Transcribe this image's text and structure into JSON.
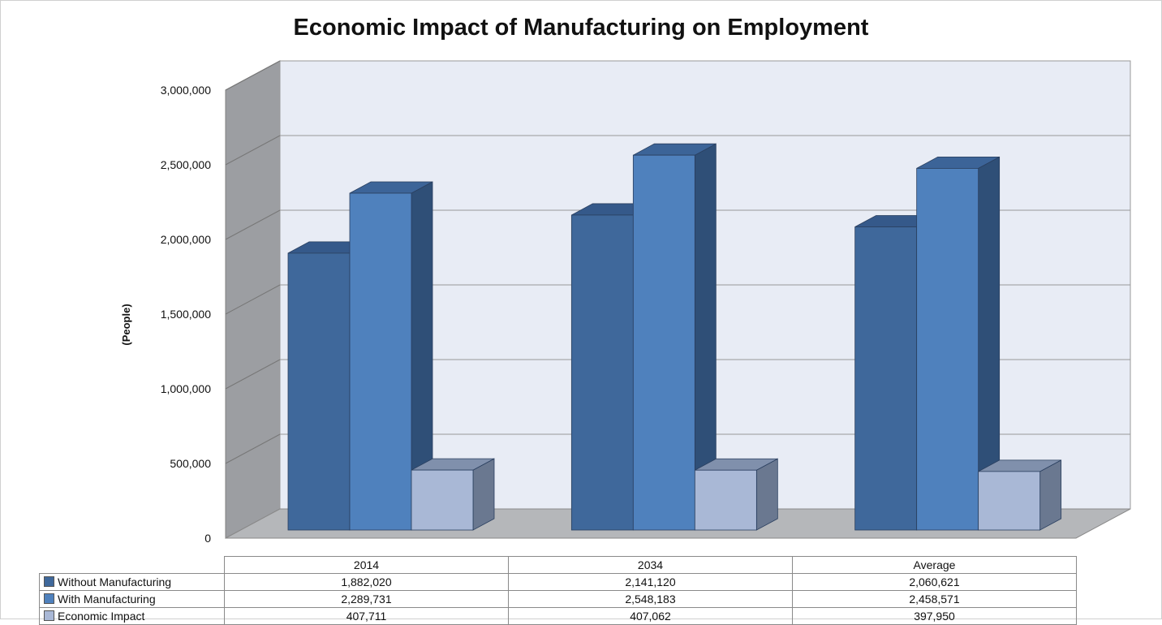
{
  "chart_data": {
    "type": "bar",
    "title": "Economic Impact of Manufacturing on Employment",
    "ylabel": "(People)",
    "xlabel": "",
    "categories": [
      "2014",
      "2034",
      "Average"
    ],
    "ylim": [
      0,
      3000000
    ],
    "ytick_labels": [
      "0",
      "500,000",
      "1,000,000",
      "1,500,000",
      "2,000,000",
      "2,500,000",
      "3,000,000"
    ],
    "grid": true,
    "three_d": true,
    "legend": "data-table-below",
    "series": [
      {
        "name": "Without Manufacturing",
        "color": "#3F689B",
        "side_color": "#2E4D74",
        "top_color": "#35598A",
        "values": [
          1882020,
          2141120,
          2060621
        ],
        "labels": [
          "1,882,020",
          "2,141,120",
          "2,060,621"
        ]
      },
      {
        "name": "With Manufacturing",
        "color": "#4F81BD",
        "side_color": "#2F4F77",
        "top_color": "#3C6498",
        "values": [
          2289731,
          2548183,
          2458571
        ],
        "labels": [
          "2,289,731",
          "2,548,183",
          "2,458,571"
        ]
      },
      {
        "name": "Economic Impact",
        "color": "#A9B8D6",
        "side_color": "#6A7890",
        "top_color": "#8090AC",
        "values": [
          407711,
          407062,
          397950
        ],
        "labels": [
          "407,711",
          "407,062",
          "397,950"
        ]
      }
    ]
  }
}
